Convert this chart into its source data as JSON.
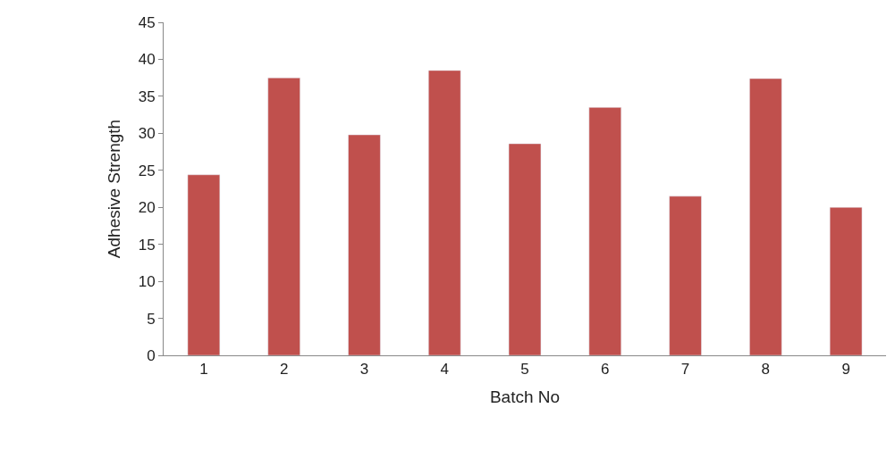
{
  "chart_data": {
    "type": "bar",
    "xlabel": "Batch No",
    "ylabel": "Adhesive Strength",
    "categories": [
      "1",
      "2",
      "3",
      "4",
      "5",
      "6",
      "7",
      "8",
      "9"
    ],
    "values": [
      24.4,
      37.5,
      29.8,
      38.5,
      28.6,
      33.5,
      21.5,
      37.4,
      20.0
    ],
    "color": "#c0504d",
    "ylim": [
      0,
      45
    ],
    "yticks": [
      0,
      5,
      10,
      15,
      20,
      25,
      30,
      35,
      40,
      45
    ]
  }
}
